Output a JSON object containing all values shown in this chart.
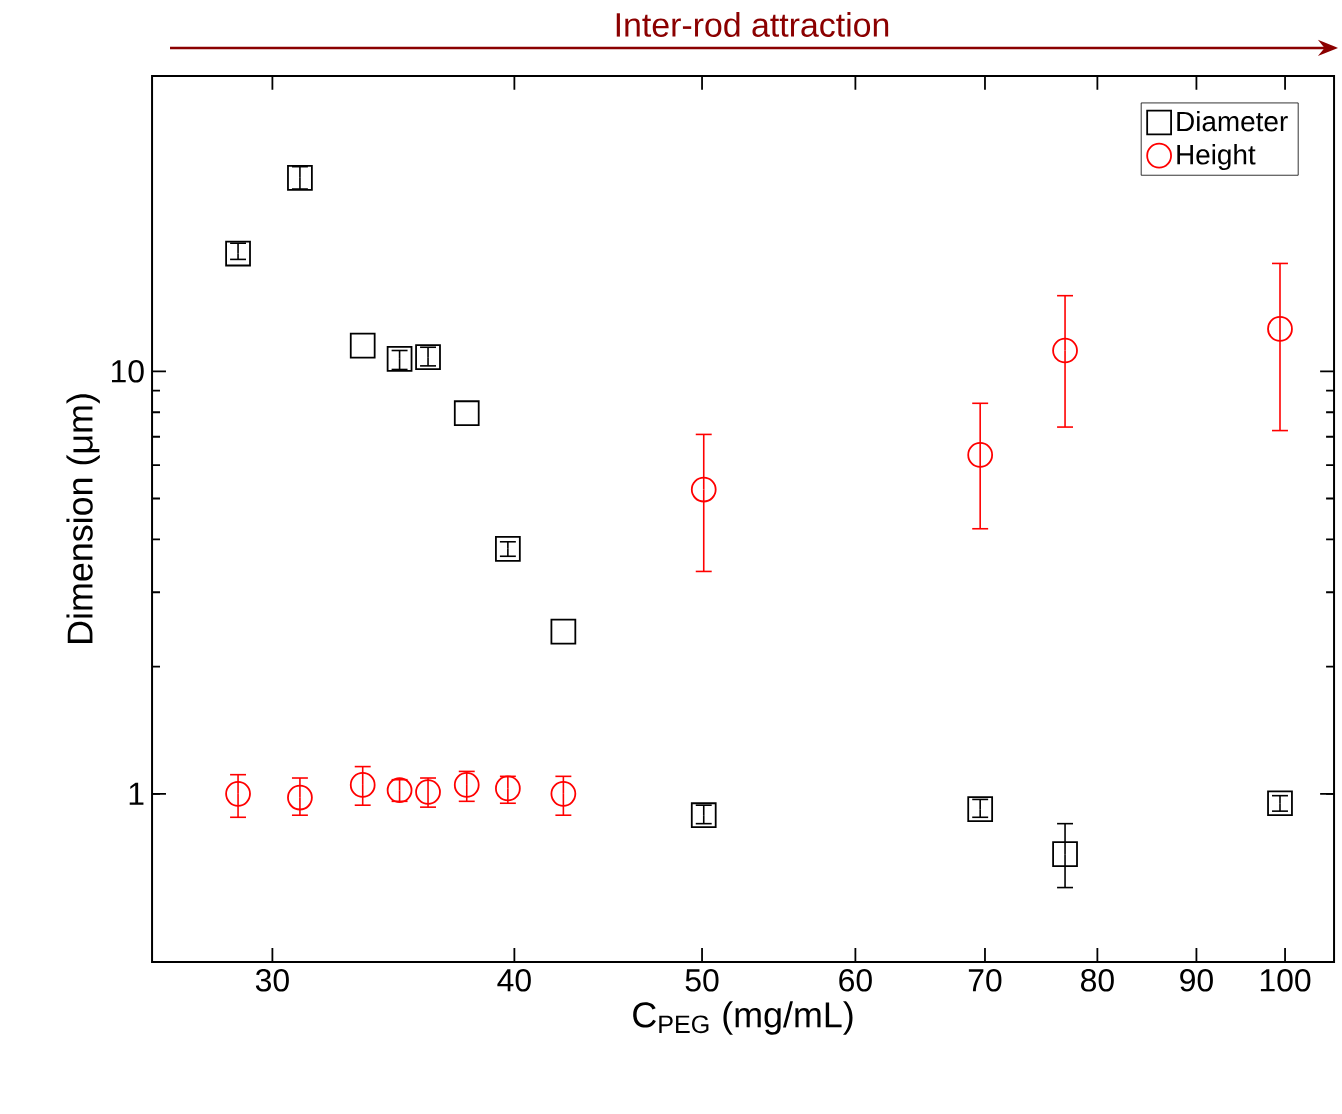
{
  "chart_data": {
    "type": "scatter",
    "xlabel": "C$_{PEG}$ (mg/mL)",
    "ylabel": "Dimension (μm)",
    "annotations": [
      "Inter-rod attraction"
    ],
    "log": "xy",
    "xlim": [
      26,
      106
    ],
    "ylim": [
      0.4,
      50
    ],
    "xticks": [
      30,
      40,
      50,
      60,
      70,
      80,
      90,
      100
    ],
    "yticks": [
      1,
      10
    ],
    "legend": "top right",
    "series": [
      {
        "name": "Diameter",
        "color": "#000000",
        "marker": "square",
        "x": [
          28.8,
          31.0,
          33.4,
          34.9,
          36.1,
          37.8,
          39.7,
          42.4,
          50.1,
          69.6,
          77.0,
          99.4
        ],
        "values": [
          19.0,
          28.7,
          11.5,
          10.7,
          10.8,
          7.96,
          3.8,
          2.42,
          0.89,
          0.92,
          0.72,
          0.95
        ],
        "errors": [
          [
            18.4,
            20.1
          ],
          [
            27.0,
            30.5
          ],
          null,
          [
            10.1,
            11.2
          ],
          [
            10.3,
            11.4
          ],
          null,
          [
            3.65,
            3.95
          ],
          null,
          [
            0.85,
            0.94
          ],
          [
            0.88,
            0.97
          ],
          [
            0.6,
            0.85
          ],
          [
            0.91,
            0.99
          ]
        ]
      },
      {
        "name": "Height",
        "color": "#ff0000",
        "marker": "circle",
        "x": [
          28.8,
          31.0,
          33.4,
          34.9,
          36.1,
          37.8,
          39.7,
          42.4,
          50.1,
          69.6,
          77.0,
          99.4
        ],
        "values": [
          1.0,
          0.98,
          1.05,
          1.02,
          1.01,
          1.05,
          1.03,
          1.0,
          5.25,
          6.34,
          11.2,
          12.6
        ],
        "errors": [
          [
            0.88,
            1.11
          ],
          [
            0.89,
            1.09
          ],
          [
            0.94,
            1.16
          ],
          [
            0.96,
            1.08
          ],
          [
            0.93,
            1.09
          ],
          [
            0.96,
            1.13
          ],
          [
            0.95,
            1.1
          ],
          [
            0.89,
            1.1
          ],
          [
            3.36,
            7.09
          ],
          [
            4.24,
            8.4
          ],
          [
            7.38,
            15.1
          ],
          [
            7.24,
            18.0
          ]
        ]
      }
    ]
  }
}
